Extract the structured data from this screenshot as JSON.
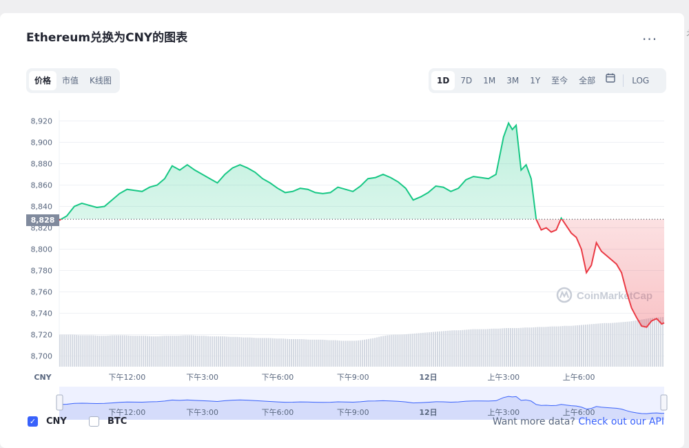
{
  "header": {
    "title": "Ethereum兑换为CNY的图表",
    "more_label": "..."
  },
  "side_glyph": "衤",
  "view_tabs": [
    {
      "label": "价格",
      "active": true
    },
    {
      "label": "市值",
      "active": false
    },
    {
      "label": "K线图",
      "active": false
    }
  ],
  "range_tabs": [
    {
      "label": "1D",
      "active": true
    },
    {
      "label": "7D",
      "active": false
    },
    {
      "label": "1M",
      "active": false
    },
    {
      "label": "3M",
      "active": false
    },
    {
      "label": "1Y",
      "active": false
    },
    {
      "label": "至今",
      "active": false
    },
    {
      "label": "全部",
      "active": false
    }
  ],
  "calendar_icon": "calendar-icon",
  "log_label": "LOG",
  "watermark": "CoinMarketCap",
  "legend": [
    {
      "label": "CNY",
      "checked": true
    },
    {
      "label": "BTC",
      "checked": false
    }
  ],
  "api_text": "Want more data?",
  "api_link": "Check out our API",
  "colors": {
    "up": "#16c784",
    "down": "#ea3943",
    "accent": "#3861fb",
    "volume": "#cfd6e4"
  },
  "chart_data": {
    "type": "line",
    "currency_label": "CNY",
    "baseline": 8828,
    "baseline_label": "8,828",
    "ylim": [
      8690,
      8930
    ],
    "y_ticks": [
      8700,
      8720,
      8740,
      8760,
      8780,
      8800,
      8820,
      8840,
      8860,
      8880,
      8900,
      8920
    ],
    "y_tick_labels": [
      "8,700",
      "8,720",
      "8,740",
      "8,760",
      "8,780",
      "8,800",
      "8,820",
      "8,840",
      "8,860",
      "8,880",
      "8,900",
      "8,920"
    ],
    "x_range": [
      9.3,
      33.4
    ],
    "x_ticks": [
      12,
      15,
      18,
      21,
      24,
      27,
      30
    ],
    "x_tick_labels": [
      "下午12:00",
      "下午3:00",
      "下午6:00",
      "下午9:00",
      "12日",
      "上午3:00",
      "上午6:00"
    ],
    "series": [
      {
        "x": [
          9.3,
          9.6,
          9.9,
          10.2,
          10.5,
          10.8,
          11.1,
          11.4,
          11.7,
          12.0,
          12.3,
          12.6,
          12.9,
          13.2,
          13.5,
          13.8,
          14.1,
          14.4,
          14.7,
          15.0,
          15.3,
          15.6,
          15.9,
          16.2,
          16.5,
          16.8,
          17.1,
          17.4,
          17.7,
          18.0,
          18.3,
          18.6,
          18.9,
          19.2,
          19.5,
          19.8,
          20.1,
          20.4,
          20.7,
          21.0,
          21.3,
          21.6,
          21.9,
          22.2,
          22.5,
          22.8,
          23.1,
          23.4,
          23.7,
          24.0,
          24.3,
          24.6,
          24.9,
          25.2,
          25.5,
          25.8,
          26.1,
          26.4,
          26.7,
          27.0,
          27.2,
          27.35,
          27.5,
          27.7,
          27.9,
          28.1,
          28.3,
          28.5,
          28.7,
          28.9,
          29.1,
          29.3,
          29.5,
          29.7,
          29.9,
          30.1,
          30.3,
          30.5,
          30.7,
          30.9,
          31.1,
          31.3,
          31.5,
          31.7,
          31.9,
          32.1,
          32.3,
          32.5,
          32.7,
          32.9,
          33.1,
          33.3,
          33.4
        ],
        "y": [
          8827,
          8831,
          8840,
          8843,
          8841,
          8839,
          8840,
          8846,
          8852,
          8856,
          8855,
          8854,
          8858,
          8860,
          8866,
          8878,
          8874,
          8879,
          8874,
          8870,
          8866,
          8862,
          8870,
          8876,
          8879,
          8876,
          8872,
          8866,
          8862,
          8857,
          8853,
          8854,
          8857,
          8856,
          8853,
          8852,
          8853,
          8858,
          8856,
          8854,
          8859,
          8866,
          8867,
          8870,
          8867,
          8863,
          8857,
          8846,
          8849,
          8853,
          8859,
          8858,
          8854,
          8857,
          8865,
          8868,
          8867,
          8866,
          8870,
          8905,
          8918,
          8912,
          8916,
          8874,
          8879,
          8866,
          8828,
          8818,
          8820,
          8816,
          8818,
          8829,
          8822,
          8815,
          8811,
          8800,
          8778,
          8785,
          8806,
          8798,
          8794,
          8790,
          8786,
          8778,
          8760,
          8745,
          8736,
          8728,
          8727,
          8733,
          8735,
          8730,
          8731
        ]
      }
    ],
    "volume": [
      0.58,
      0.58,
      0.58,
      0.57,
      0.57,
      0.57,
      0.56,
      0.56,
      0.57,
      0.57,
      0.57,
      0.56,
      0.56,
      0.56,
      0.55,
      0.55,
      0.56,
      0.56,
      0.56,
      0.57,
      0.57,
      0.56,
      0.56,
      0.55,
      0.55,
      0.55,
      0.54,
      0.54,
      0.53,
      0.53,
      0.52,
      0.52,
      0.52,
      0.51,
      0.51,
      0.5,
      0.5,
      0.5,
      0.49,
      0.49,
      0.49,
      0.48,
      0.48,
      0.47,
      0.47,
      0.47,
      0.48,
      0.5,
      0.52,
      0.55,
      0.57,
      0.58,
      0.58,
      0.59,
      0.6,
      0.61,
      0.62,
      0.63,
      0.64,
      0.65,
      0.66,
      0.66,
      0.67,
      0.68,
      0.68,
      0.68,
      0.69,
      0.69,
      0.7,
      0.7,
      0.7,
      0.71,
      0.71,
      0.72,
      0.72,
      0.73,
      0.73,
      0.74,
      0.74,
      0.75,
      0.76,
      0.77,
      0.78,
      0.79,
      0.79,
      0.8,
      0.81,
      0.82,
      0.84,
      0.86,
      0.88,
      0.89,
      0.9
    ]
  },
  "navigator": {
    "x_tick_labels": [
      "下午12:00",
      "下午3:00",
      "下午6:00",
      "下午9:00",
      "12日",
      "上午3:00",
      "上午6:00"
    ]
  }
}
